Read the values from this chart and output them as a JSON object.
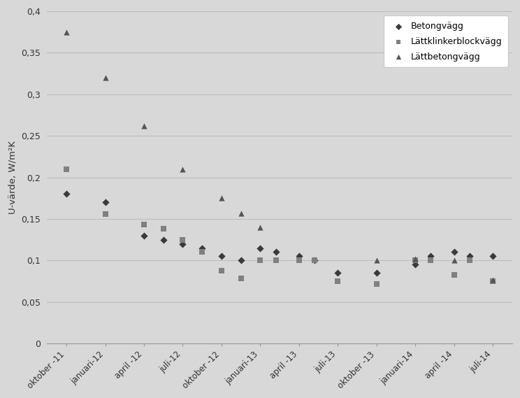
{
  "ylabel": "U-värde, W/m²K",
  "background_color": "#d8d8d8",
  "plot_bg_color": "#d8d8d8",
  "grid_color": "#bcbcbc",
  "x_tick_labels": [
    "oktober -11",
    "januari-12",
    "april -12",
    "juli-12",
    "oktober -12",
    "januari-13",
    "april -13",
    "juli-13",
    "oktober -13",
    "januari-14",
    "april -14",
    "juli-14"
  ],
  "ylim": [
    0,
    0.4
  ],
  "yticks": [
    0,
    0.05,
    0.1,
    0.15,
    0.2,
    0.25,
    0.3,
    0.35,
    0.4
  ],
  "offsets": {
    "Betongvägg": -0.05,
    "Lättklinkerblockvägg": 0.05,
    "Lättbetongvägg": 0.13
  },
  "series": {
    "Betongvägg": {
      "color": "#3a3a3a",
      "marker": "D",
      "markersize": 7,
      "x": [
        0,
        1,
        2,
        2.5,
        3,
        3.5,
        4,
        4.5,
        5,
        5.4,
        6,
        6.4,
        7,
        8,
        9,
        9.4,
        10,
        10.4,
        11
      ],
      "y": [
        0.18,
        0.17,
        0.13,
        0.125,
        0.12,
        0.115,
        0.105,
        0.1,
        0.115,
        0.11,
        0.105,
        0.1,
        0.085,
        0.085,
        0.095,
        0.105,
        0.11,
        0.105,
        0.105
      ]
    },
    "Lättklinkerblockvägg": {
      "color": "#808080",
      "marker": "s",
      "markersize": 7,
      "x": [
        0,
        1,
        2,
        2.5,
        3,
        3.5,
        4,
        4.5,
        5,
        5.4,
        6,
        6.4,
        7,
        8,
        9,
        9.4,
        10,
        10.4,
        11
      ],
      "y": [
        0.21,
        0.156,
        0.143,
        0.138,
        0.125,
        0.11,
        0.088,
        0.078,
        0.1,
        0.1,
        0.1,
        0.1,
        0.075,
        0.072,
        0.1,
        0.1,
        0.083,
        0.1,
        0.075
      ]
    },
    "Lättbetongvägg": {
      "color": "#555555",
      "marker": "^",
      "markersize": 8,
      "x": [
        0,
        1,
        2,
        3,
        4,
        4.5,
        5,
        8,
        9,
        10,
        11
      ],
      "y": [
        0.375,
        0.32,
        0.262,
        0.21,
        0.175,
        0.157,
        0.14,
        0.1,
        0.102,
        0.1,
        0.077
      ]
    }
  },
  "legend_labels": [
    "Betongvägg",
    "Lättklinkerblockvägg",
    "Lättbetongvägg"
  ]
}
